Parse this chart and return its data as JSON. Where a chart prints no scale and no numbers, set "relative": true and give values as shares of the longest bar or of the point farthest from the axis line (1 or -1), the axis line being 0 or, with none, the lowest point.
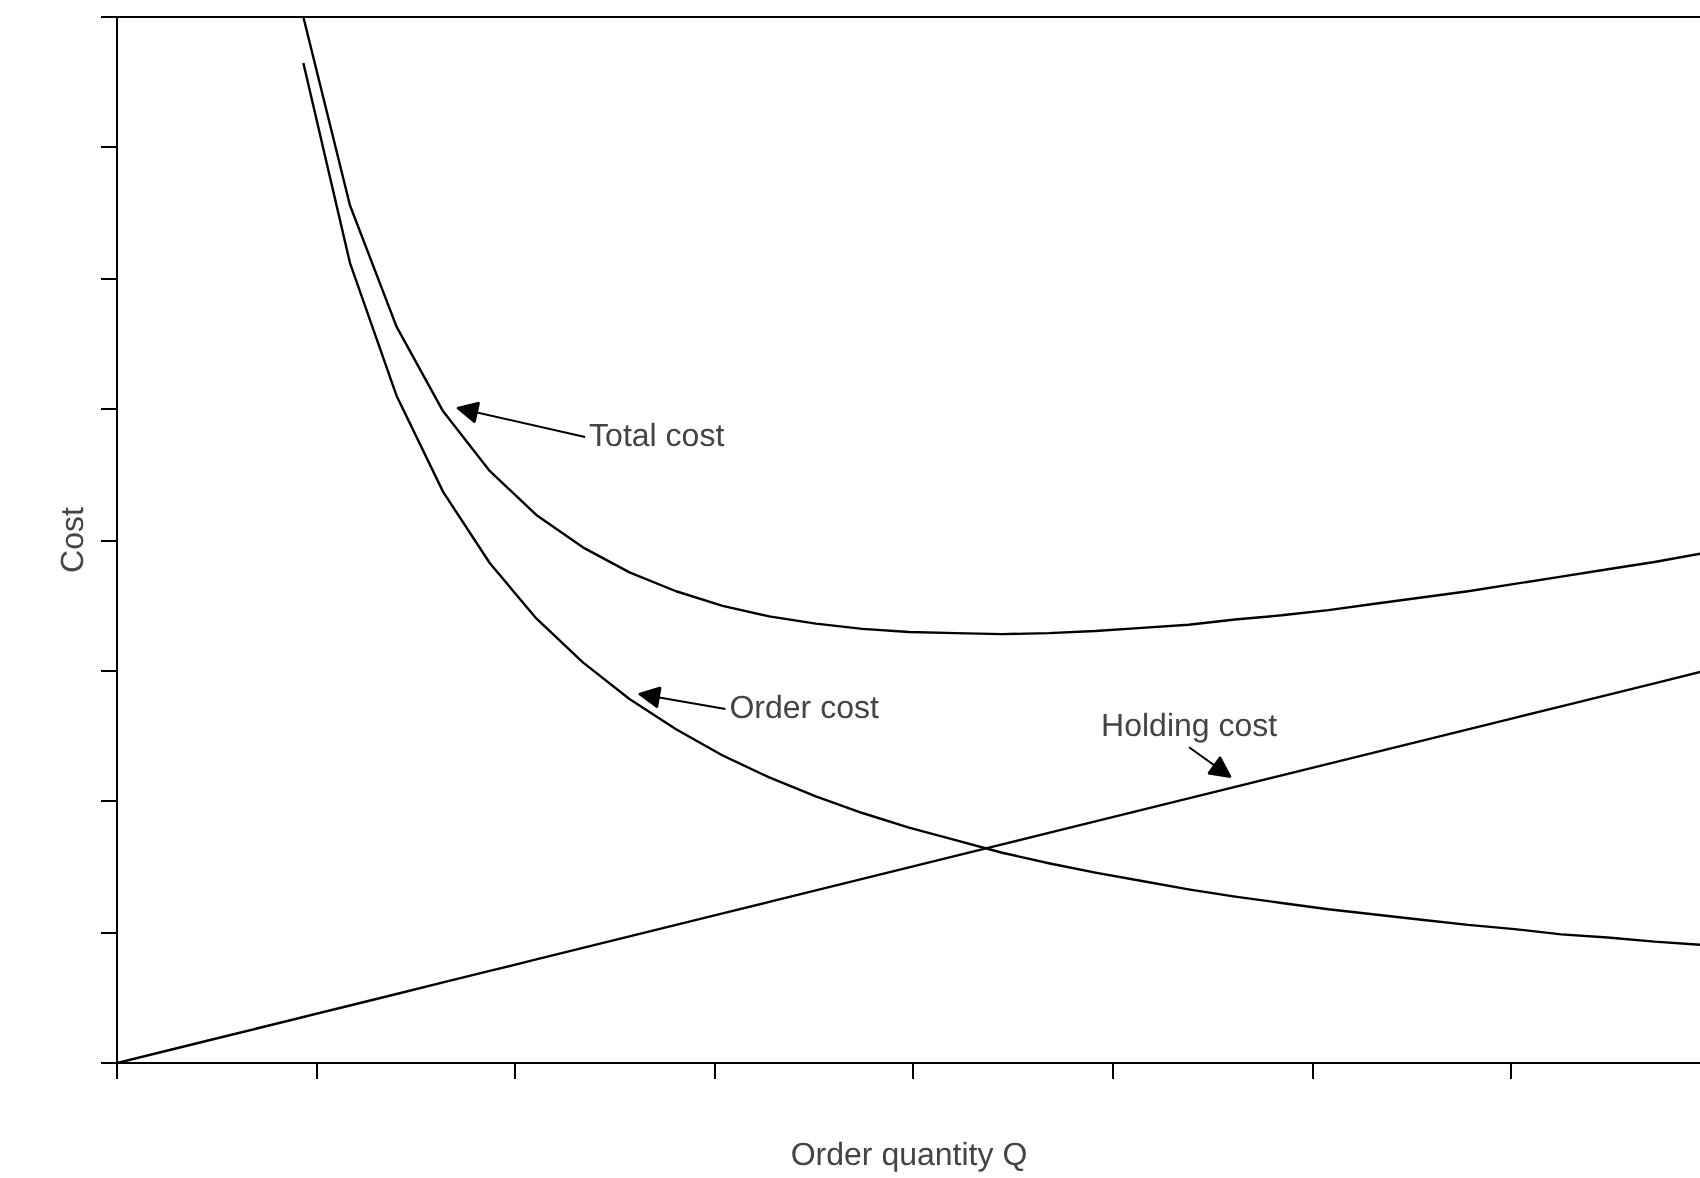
{
  "chart_data": {
    "type": "line",
    "relative": true,
    "xlabel": "Order quantity Q",
    "ylabel": "Cost",
    "categories": [
      null,
      null,
      null,
      null,
      null,
      null,
      null,
      null,
      null,
      null,
      null,
      null,
      null,
      null,
      null,
      null,
      null,
      null,
      null,
      null,
      null,
      null,
      null,
      null,
      null,
      null,
      null,
      null,
      null,
      null,
      null,
      null,
      null,
      null,
      null
    ],
    "tick_labels": false,
    "marker": "none",
    "line_style": "solid",
    "series": [
      {
        "color": "#000000",
        "values": [
          null,
          null,
          null,
          null,
          1.0,
          0.82,
          0.704,
          0.623,
          0.566,
          0.524,
          0.493,
          0.469,
          0.451,
          0.437,
          0.427,
          0.42,
          0.415,
          0.412,
          0.411,
          0.41,
          0.411,
          0.413,
          0.416,
          0.419,
          0.424,
          0.428,
          0.433,
          0.439,
          0.445,
          0.451,
          0.458,
          0.465,
          0.472,
          0.479,
          0.487
        ]
      },
      {
        "color": "#000000",
        "values": [
          null,
          null,
          null,
          null,
          0.956,
          0.765,
          0.638,
          0.546,
          0.478,
          0.425,
          0.383,
          0.348,
          0.319,
          0.294,
          0.273,
          0.255,
          0.239,
          0.225,
          0.213,
          0.201,
          0.191,
          0.182,
          0.174,
          0.166,
          0.159,
          0.153,
          0.147,
          0.142,
          0.137,
          0.132,
          0.128,
          0.123,
          0.12,
          0.116,
          0.113
        ]
      },
      {
        "color": "#000000",
        "values": [
          0,
          0.011,
          0.022,
          0.033,
          0.044,
          0.055,
          0.066,
          0.077,
          0.088,
          0.099,
          0.11,
          0.121,
          0.132,
          0.143,
          0.154,
          0.165,
          0.176,
          0.187,
          0.198,
          0.209,
          0.22,
          0.231,
          0.242,
          0.253,
          0.264,
          0.275,
          0.286,
          0.297,
          0.308,
          0.319,
          0.33,
          0.341,
          0.352,
          0.363,
          0.374
        ]
      }
    ],
    "annotations": [
      "Total cost",
      "Order cost",
      "Holding cost"
    ]
  }
}
